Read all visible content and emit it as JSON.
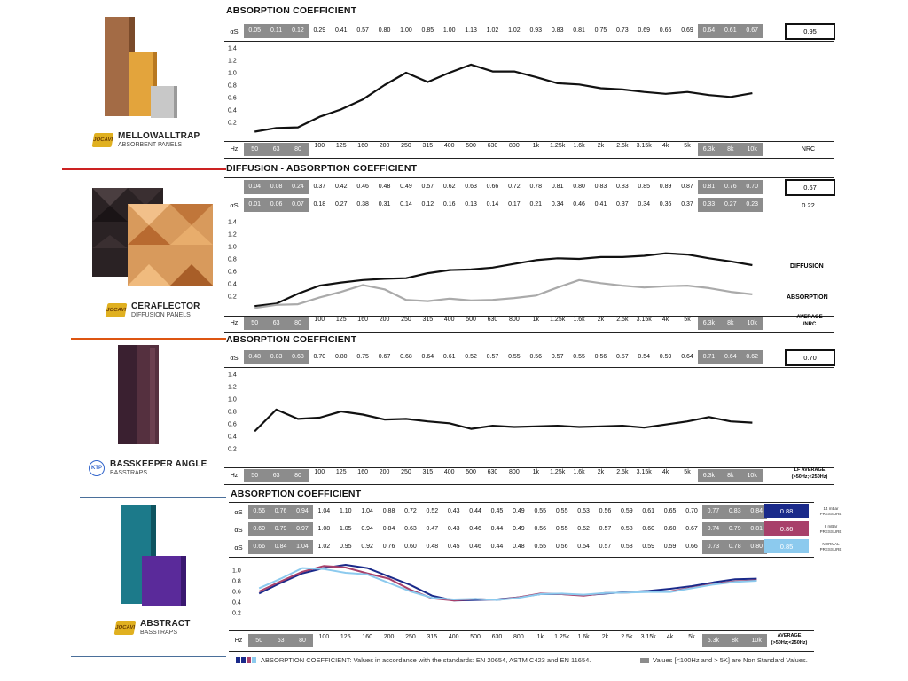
{
  "freqs": [
    "50",
    "63",
    "80",
    "100",
    "125",
    "160",
    "200",
    "250",
    "315",
    "400",
    "500",
    "630",
    "800",
    "1k",
    "1.25k",
    "1.6k",
    "2k",
    "2.5k",
    "3.15k",
    "4k",
    "5k",
    "6.3k",
    "8k",
    "10k"
  ],
  "hz_label": "Hz",
  "products": [
    {
      "name": "MELLOWALLTRAP",
      "sub": "ABSORBENT PANELS",
      "logo": "JOCAVI"
    },
    {
      "name": "CERAFLECTOR",
      "sub": "DIFFUSION PANELS",
      "logo": "JOCAVI"
    },
    {
      "name": "BASSKEEPER ANGLE",
      "sub": "BASSTRAPS",
      "logo": "KTP"
    },
    {
      "name": "ABSTRACT",
      "sub": "BASSTRAPS",
      "logo": "JOCAVI"
    }
  ],
  "colors": {
    "black": "#111111",
    "gray_line": "#aaaaaa",
    "blue14": "#1a2a8a",
    "mauve8": "#a8406a",
    "light": "#8ccaee",
    "ns_cell": "#8c8c8c",
    "divider_red": "#cc2222",
    "divider_orange": "#dd5511",
    "divider_blue": "#4a6f9a"
  },
  "panels": {
    "p1": {
      "title": "ABSORPTION COEFFICIENT",
      "row_label": "αS",
      "values": [
        "0.05",
        "0.11",
        "0.12",
        "0.29",
        "0.41",
        "0.57",
        "0.80",
        "1.00",
        "0.85",
        "1.00",
        "1.13",
        "1.02",
        "1.02",
        "0.93",
        "0.83",
        "0.81",
        "0.75",
        "0.73",
        "0.69",
        "0.66",
        "0.69",
        "0.64",
        "0.61",
        "0.67"
      ],
      "nrc": "0.95",
      "nrc_label": "NRC",
      "yticks": [
        "1.4",
        "1.2",
        "1.0",
        "0.8",
        "0.6",
        "0.4",
        "0.2"
      ]
    },
    "p2": {
      "title": "DIFFUSION - ABSORPTION COEFFICIENT",
      "row1_values": [
        "0.04",
        "0.08",
        "0.24",
        "0.37",
        "0.42",
        "0.46",
        "0.48",
        "0.49",
        "0.57",
        "0.62",
        "0.63",
        "0.66",
        "0.72",
        "0.78",
        "0.81",
        "0.80",
        "0.83",
        "0.83",
        "0.85",
        "0.89",
        "0.87",
        "0.81",
        "0.76",
        "0.70"
      ],
      "row1_avg": "0.67",
      "row2_label": "αS",
      "row2_values": [
        "0.01",
        "0.06",
        "0.07",
        "0.18",
        "0.27",
        "0.38",
        "0.31",
        "0.14",
        "0.12",
        "0.16",
        "0.13",
        "0.14",
        "0.17",
        "0.21",
        "0.34",
        "0.46",
        "0.41",
        "0.37",
        "0.34",
        "0.36",
        "0.37",
        "0.33",
        "0.27",
        "0.23"
      ],
      "row2_avg": "0.22",
      "avg_label_1": "AVERAGE",
      "avg_label_2": "/NRC",
      "legend_diffusion": "DIFFUSION",
      "legend_absorption": "ABSORPTION",
      "yticks": [
        "1.4",
        "1.2",
        "1.0",
        "0.8",
        "0.6",
        "0.4",
        "0.2"
      ]
    },
    "p3": {
      "title": "ABSORPTION COEFFICIENT",
      "row_label": "αS",
      "values": [
        "0.48",
        "0.83",
        "0.68",
        "0.70",
        "0.80",
        "0.75",
        "0.67",
        "0.68",
        "0.64",
        "0.61",
        "0.52",
        "0.57",
        "0.55",
        "0.56",
        "0.57",
        "0.55",
        "0.56",
        "0.57",
        "0.54",
        "0.59",
        "0.64",
        "0.71",
        "0.64",
        "0.62"
      ],
      "lf_avg": "0.70",
      "lf_label_1": "LF AVERAGE",
      "lf_label_2": "(>50Hz;<250Hz)",
      "yticks": [
        "1.4",
        "1.2",
        "1.0",
        "0.8",
        "0.6",
        "0.4",
        "0.2"
      ]
    },
    "p4": {
      "title": "ABSORPTION COEFFICIENT",
      "rows": [
        {
          "label": "αS",
          "values": [
            "0.56",
            "0.76",
            "0.94",
            "1.04",
            "1.10",
            "1.04",
            "0.88",
            "0.72",
            "0.52",
            "0.43",
            "0.44",
            "0.45",
            "0.49",
            "0.55",
            "0.55",
            "0.53",
            "0.56",
            "0.59",
            "0.61",
            "0.65",
            "0.70",
            "0.77",
            "0.83",
            "0.84"
          ],
          "avg": "0.88",
          "note_1": "14 mBar",
          "note_2": "PRESSURE"
        },
        {
          "label": "αS",
          "values": [
            "0.60",
            "0.79",
            "0.97",
            "1.08",
            "1.05",
            "0.94",
            "0.84",
            "0.63",
            "0.47",
            "0.43",
            "0.46",
            "0.44",
            "0.49",
            "0.56",
            "0.55",
            "0.52",
            "0.57",
            "0.58",
            "0.60",
            "0.60",
            "0.67",
            "0.74",
            "0.79",
            "0.81"
          ],
          "avg": "0.86",
          "note_1": "8 mBar",
          "note_2": "PRESSURE"
        },
        {
          "label": "αS",
          "values": [
            "0.66",
            "0.84",
            "1.04",
            "1.02",
            "0.95",
            "0.92",
            "0.76",
            "0.60",
            "0.48",
            "0.45",
            "0.46",
            "0.44",
            "0.48",
            "0.55",
            "0.56",
            "0.54",
            "0.57",
            "0.58",
            "0.59",
            "0.59",
            "0.66",
            "0.73",
            "0.78",
            "0.80"
          ],
          "avg": "0.85",
          "note_1": "NORMAL",
          "note_2": "PRESSURE"
        }
      ],
      "avg_label_1": "AVERAGE",
      "avg_label_2": "(>50Hz;<250Hz)",
      "yticks": [
        "1.0",
        "0.8",
        "0.6",
        "0.4",
        "0.2"
      ]
    }
  },
  "footer": {
    "left": "ABSORPTION COEFFICIENT: Values in accordance with the standards: EN 20654, ASTM C423 and EN 11654.",
    "right": "Values [<100Hz and > 5K] are Non Standard Values."
  },
  "chart_data": [
    {
      "type": "line",
      "title": "ABSORPTION COEFFICIENT",
      "xlabel": "Hz",
      "categories": [
        "50",
        "63",
        "80",
        "100",
        "125",
        "160",
        "200",
        "250",
        "315",
        "400",
        "500",
        "630",
        "800",
        "1k",
        "1.25k",
        "1.6k",
        "2k",
        "2.5k",
        "3.15k",
        "4k",
        "5k",
        "6.3k",
        "8k",
        "10k"
      ],
      "series": [
        {
          "values": [
            0.05,
            0.11,
            0.12,
            0.29,
            0.41,
            0.57,
            0.8,
            1.0,
            0.85,
            1.0,
            1.13,
            1.02,
            1.02,
            0.93,
            0.83,
            0.81,
            0.75,
            0.73,
            0.69,
            0.66,
            0.69,
            0.64,
            0.61,
            0.67
          ]
        }
      ],
      "ylim": [
        0,
        1.4
      ],
      "nrc": 0.95
    },
    {
      "type": "line",
      "title": "DIFFUSION - ABSORPTION COEFFICIENT",
      "xlabel": "Hz",
      "categories": [
        "50",
        "63",
        "80",
        "100",
        "125",
        "160",
        "200",
        "250",
        "315",
        "400",
        "500",
        "630",
        "800",
        "1k",
        "1.25k",
        "1.6k",
        "2k",
        "2.5k",
        "3.15k",
        "4k",
        "5k",
        "6.3k",
        "8k",
        "10k"
      ],
      "series": [
        {
          "name": "DIFFUSION",
          "values": [
            0.04,
            0.08,
            0.24,
            0.37,
            0.42,
            0.46,
            0.48,
            0.49,
            0.57,
            0.62,
            0.63,
            0.66,
            0.72,
            0.78,
            0.81,
            0.8,
            0.83,
            0.83,
            0.85,
            0.89,
            0.87,
            0.81,
            0.76,
            0.7
          ]
        },
        {
          "name": "ABSORPTION",
          "values": [
            0.01,
            0.06,
            0.07,
            0.18,
            0.27,
            0.38,
            0.31,
            0.14,
            0.12,
            0.16,
            0.13,
            0.14,
            0.17,
            0.21,
            0.34,
            0.46,
            0.41,
            0.37,
            0.34,
            0.36,
            0.37,
            0.33,
            0.27,
            0.23
          ]
        }
      ],
      "ylim": [
        0,
        1.4
      ]
    },
    {
      "type": "line",
      "title": "ABSORPTION COEFFICIENT",
      "xlabel": "Hz",
      "categories": [
        "50",
        "63",
        "80",
        "100",
        "125",
        "160",
        "200",
        "250",
        "315",
        "400",
        "500",
        "630",
        "800",
        "1k",
        "1.25k",
        "1.6k",
        "2k",
        "2.5k",
        "3.15k",
        "4k",
        "5k",
        "6.3k",
        "8k",
        "10k"
      ],
      "series": [
        {
          "values": [
            0.48,
            0.83,
            0.68,
            0.7,
            0.8,
            0.75,
            0.67,
            0.68,
            0.64,
            0.61,
            0.52,
            0.57,
            0.55,
            0.56,
            0.57,
            0.55,
            0.56,
            0.57,
            0.54,
            0.59,
            0.64,
            0.71,
            0.64,
            0.62
          ]
        }
      ],
      "ylim": [
        0,
        1.4
      ],
      "lf_average": 0.7
    },
    {
      "type": "line",
      "title": "ABSORPTION COEFFICIENT",
      "xlabel": "Hz",
      "categories": [
        "50",
        "63",
        "80",
        "100",
        "125",
        "160",
        "200",
        "250",
        "315",
        "400",
        "500",
        "630",
        "800",
        "1k",
        "1.25k",
        "1.6k",
        "2k",
        "2.5k",
        "3.15k",
        "4k",
        "5k",
        "6.3k",
        "8k",
        "10k"
      ],
      "series": [
        {
          "name": "14 mBar PRESSURE",
          "values": [
            0.56,
            0.76,
            0.94,
            1.04,
            1.1,
            1.04,
            0.88,
            0.72,
            0.52,
            0.43,
            0.44,
            0.45,
            0.49,
            0.55,
            0.55,
            0.53,
            0.56,
            0.59,
            0.61,
            0.65,
            0.7,
            0.77,
            0.83,
            0.84
          ]
        },
        {
          "name": "8 mBar PRESSURE",
          "values": [
            0.6,
            0.79,
            0.97,
            1.08,
            1.05,
            0.94,
            0.84,
            0.63,
            0.47,
            0.43,
            0.46,
            0.44,
            0.49,
            0.56,
            0.55,
            0.52,
            0.57,
            0.58,
            0.6,
            0.6,
            0.67,
            0.74,
            0.79,
            0.81
          ]
        },
        {
          "name": "NORMAL PRESSURE",
          "values": [
            0.66,
            0.84,
            1.04,
            1.02,
            0.95,
            0.92,
            0.76,
            0.6,
            0.48,
            0.45,
            0.46,
            0.44,
            0.48,
            0.55,
            0.56,
            0.54,
            0.57,
            0.58,
            0.59,
            0.59,
            0.66,
            0.73,
            0.78,
            0.8
          ]
        }
      ],
      "ylim": [
        0,
        1.1
      ]
    }
  ]
}
